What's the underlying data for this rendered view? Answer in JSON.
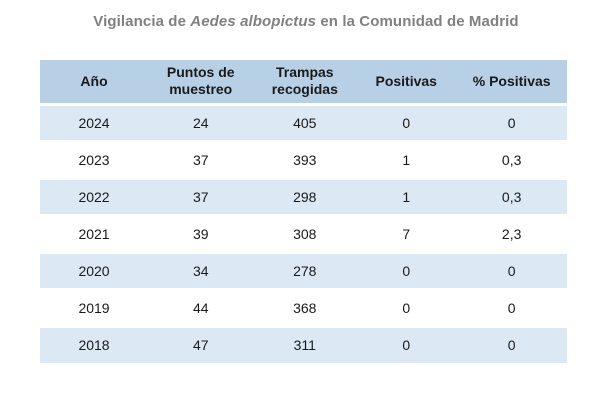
{
  "title": {
    "prefix": "Vigilancia de ",
    "species": "Aedes albopictus",
    "suffix": " en la Comunidad de Madrid"
  },
  "chart_data": {
    "type": "table",
    "title": "Vigilancia de Aedes albopictus en la Comunidad de Madrid",
    "columns": [
      "Año",
      "Puntos de muestreo",
      "Trampas recogidas",
      "Positivas",
      "% Positivas"
    ],
    "rows": [
      [
        "2024",
        "24",
        "405",
        "0",
        "0"
      ],
      [
        "2023",
        "37",
        "393",
        "1",
        "0,3"
      ],
      [
        "2022",
        "37",
        "298",
        "1",
        "0,3"
      ],
      [
        "2021",
        "39",
        "308",
        "7",
        "2,3"
      ],
      [
        "2020",
        "34",
        "278",
        "0",
        "0"
      ],
      [
        "2019",
        "44",
        "368",
        "0",
        "0"
      ],
      [
        "2018",
        "47",
        "311",
        "0",
        "0"
      ]
    ],
    "layout": {
      "striped": true,
      "stripe_pattern": "odd rows shaded blue, even rows white",
      "grid": false,
      "legend": "none"
    }
  },
  "colors": {
    "header_bg": "#b7d0e6",
    "row_alt_bg": "#dce8f4",
    "row_bg": "#ffffff",
    "title_color": "#808080",
    "text_color": "#1a1a1a"
  }
}
